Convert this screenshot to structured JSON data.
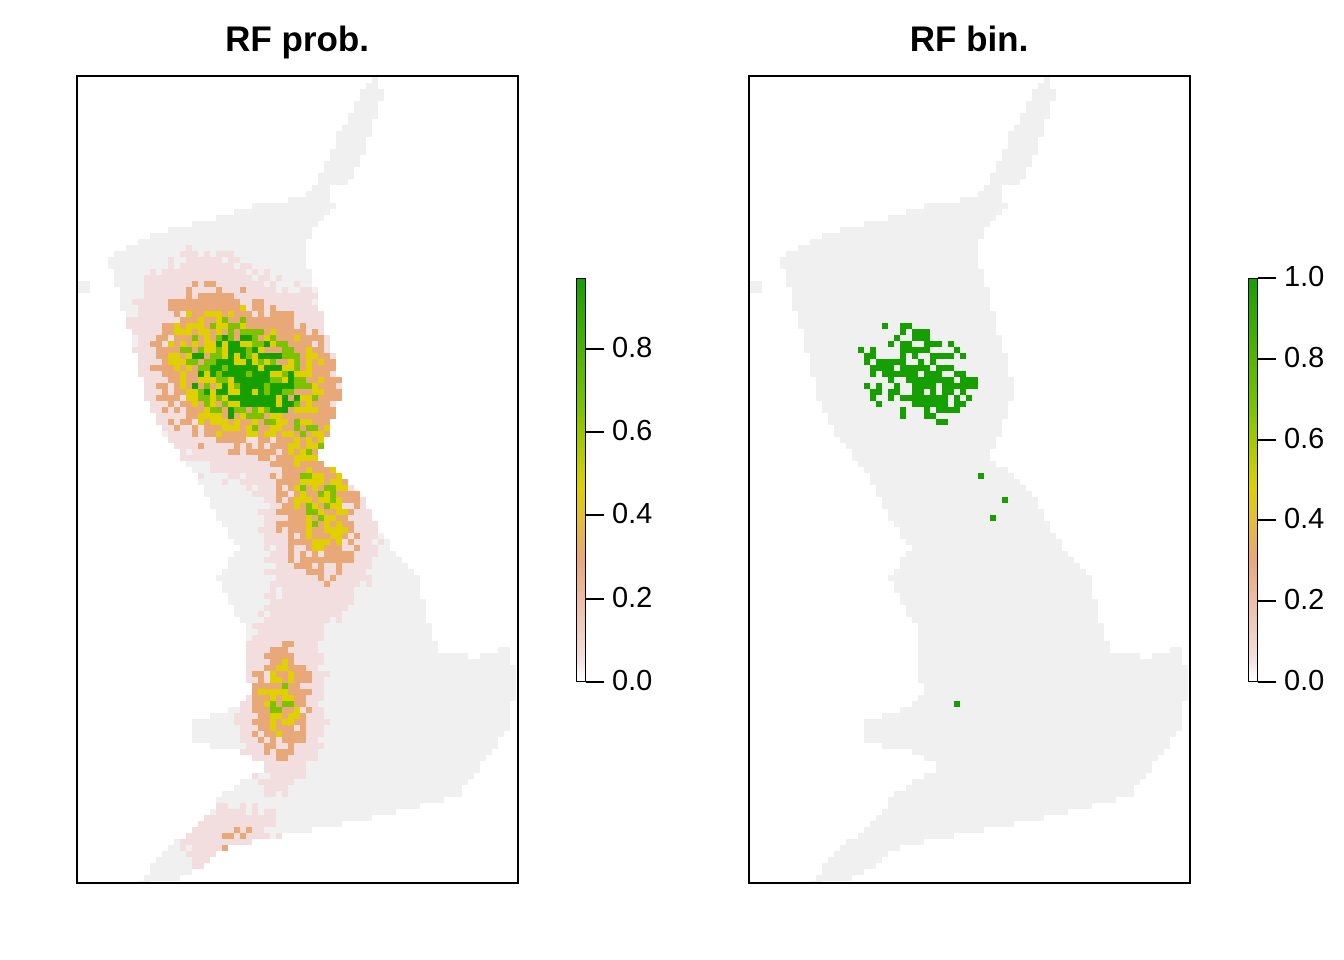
{
  "panels": [
    {
      "title": "RF prob.",
      "legend": {
        "ticks": [
          "0.0",
          "0.2",
          "0.4",
          "0.6",
          "0.8"
        ],
        "tick_values": [
          0.0,
          0.2,
          0.4,
          0.6,
          0.8
        ],
        "range": [
          0.0,
          0.97
        ]
      }
    },
    {
      "title": "RF bin.",
      "legend": {
        "ticks": [
          "0.0",
          "0.2",
          "0.4",
          "0.6",
          "0.8",
          "1.0"
        ],
        "tick_values": [
          0.0,
          0.2,
          0.4,
          0.6,
          0.8,
          1.0
        ],
        "range": [
          0.0,
          1.0
        ]
      }
    }
  ],
  "colors": {
    "background_land": "#f0f0f0",
    "low": "#f2dede",
    "mid_low": "#e8a878",
    "mid": "#e0d000",
    "mid_high": "#7cc200",
    "high": "#16a000",
    "frame": "#000000"
  }
}
